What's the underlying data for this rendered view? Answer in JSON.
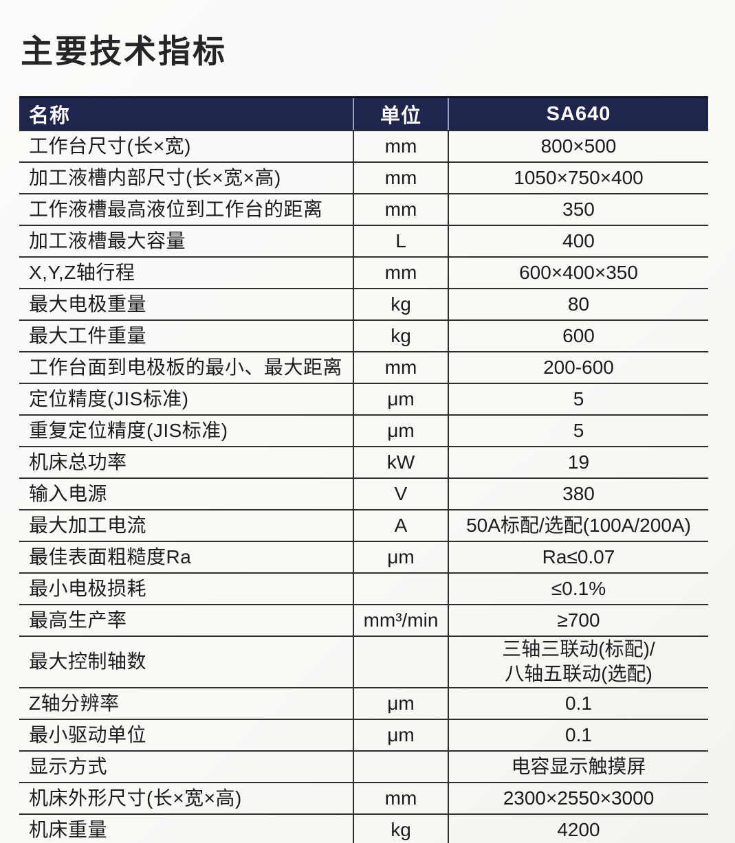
{
  "page": {
    "title": "主要技术指标"
  },
  "colors": {
    "header_bg": "#20254d",
    "header_text": "#ffffff",
    "grid_line": "#2e2e2e",
    "paper": "#fbfaf8"
  },
  "table": {
    "columns": [
      "名称",
      "单位",
      "SA640"
    ],
    "rows": [
      {
        "name": "工作台尺寸(长×宽)",
        "unit": "mm",
        "value": "800×500"
      },
      {
        "name": "加工液槽内部尺寸(长×宽×高)",
        "unit": "mm",
        "value": "1050×750×400"
      },
      {
        "name": "工作液槽最高液位到工作台的距离",
        "unit": "mm",
        "value": "350"
      },
      {
        "name": "加工液槽最大容量",
        "unit": "L",
        "value": "400"
      },
      {
        "name": "X,Y,Z轴行程",
        "unit": "mm",
        "value": "600×400×350"
      },
      {
        "name": "最大电极重量",
        "unit": "kg",
        "value": "80"
      },
      {
        "name": "最大工件重量",
        "unit": "kg",
        "value": "600"
      },
      {
        "name": "工作台面到电极板的最小、最大距离",
        "unit": "mm",
        "value": "200-600"
      },
      {
        "name": "定位精度(JIS标准)",
        "unit": "μm",
        "value": "5"
      },
      {
        "name": "重复定位精度(JIS标准)",
        "unit": "μm",
        "value": "5"
      },
      {
        "name": "机床总功率",
        "unit": "kW",
        "value": "19"
      },
      {
        "name": "输入电源",
        "unit": "V",
        "value": "380"
      },
      {
        "name": "最大加工电流",
        "unit": "A",
        "value": "50A标配/选配(100A/200A)"
      },
      {
        "name": "最佳表面粗糙度Ra",
        "unit": "μm",
        "value": "Ra≤0.07"
      },
      {
        "name": "最小电极损耗",
        "unit": "",
        "value": "≤0.1%"
      },
      {
        "name": "最高生产率",
        "unit": "mm³/min",
        "value": "≥700"
      },
      {
        "name": "最大控制轴数",
        "unit": "",
        "value": "三轴三联动(标配)/\n八轴五联动(选配)"
      },
      {
        "name": "Z轴分辨率",
        "unit": "μm",
        "value": "0.1"
      },
      {
        "name": "最小驱动单位",
        "unit": "μm",
        "value": "0.1"
      },
      {
        "name": "显示方式",
        "unit": "",
        "value": "电容显示触摸屏"
      },
      {
        "name": "机床外形尺寸(长×宽×高)",
        "unit": "mm",
        "value": "2300×2550×3000"
      },
      {
        "name": "机床重量",
        "unit": "kg",
        "value": "4200"
      }
    ]
  }
}
